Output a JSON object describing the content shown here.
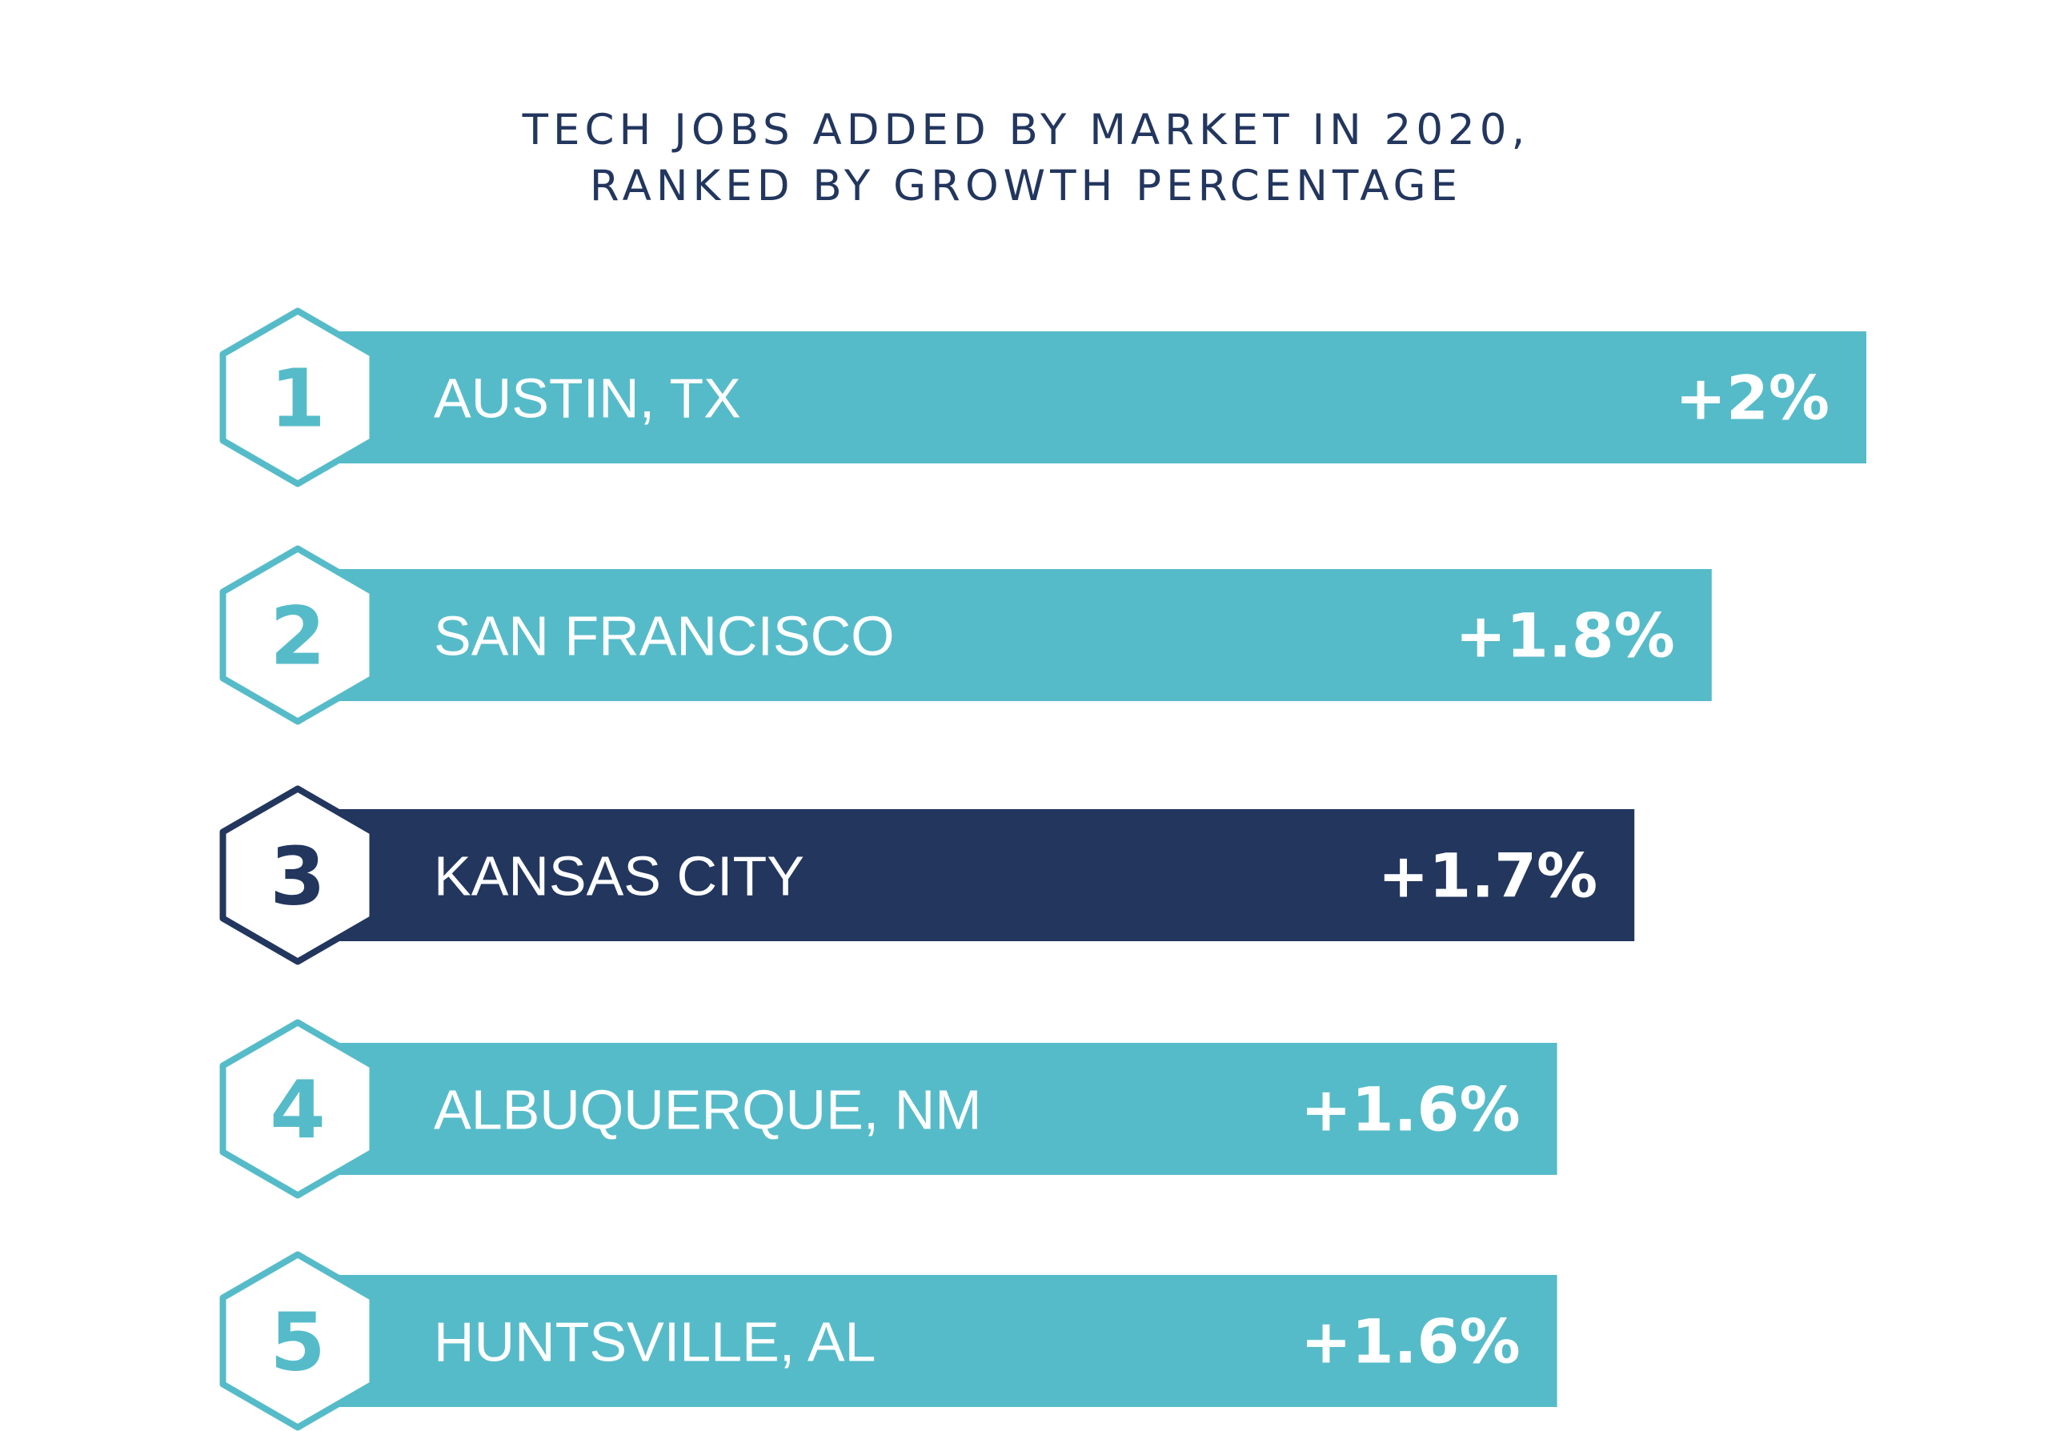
{
  "chart_data": {
    "type": "bar",
    "orientation": "horizontal",
    "title_lines": [
      "TECH JOBS ADDED BY MARKET IN 2020,",
      "RANKED BY GROWTH PERCENTAGE"
    ],
    "unit": "%",
    "xlim": [
      0,
      2
    ],
    "grid": false,
    "legend": "none",
    "colors": {
      "default": "#56bbc9",
      "highlight": "#22365e"
    },
    "bars": [
      {
        "rank": "1",
        "category": "AUSTIN, TX",
        "value": 2.0,
        "label": "+2%",
        "highlight": false
      },
      {
        "rank": "2",
        "category": "SAN FRANCISCO",
        "value": 1.8,
        "label": "+1.8%",
        "highlight": false
      },
      {
        "rank": "3",
        "category": "KANSAS CITY",
        "value": 1.7,
        "label": "+1.7%",
        "highlight": true
      },
      {
        "rank": "4",
        "category": "ALBUQUERQUE, NM",
        "value": 1.6,
        "label": "+1.6%",
        "highlight": false
      },
      {
        "rank": "5",
        "category": "HUNTSVILLE, AL",
        "value": 1.6,
        "label": "+1.6%",
        "highlight": false
      }
    ]
  }
}
